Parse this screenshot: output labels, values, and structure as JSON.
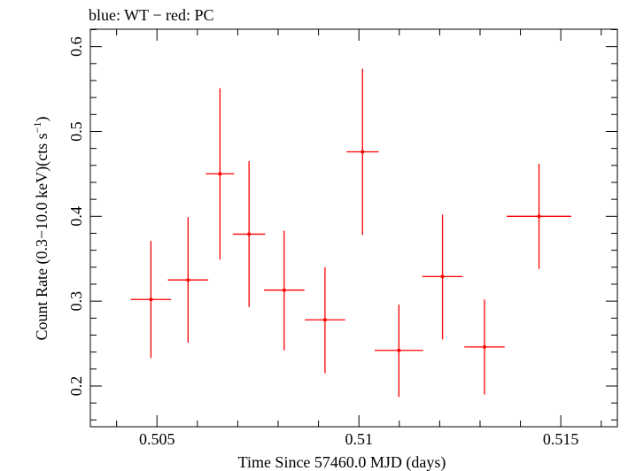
{
  "chart_data": {
    "type": "scatter",
    "title": "blue: WT − red: PC",
    "xlabel": "Time Since 57460.0 MJD (days)",
    "ylabel_main": "Count Rate (0.3−10.0 keV)(cts s",
    "ylabel_sup": "−1",
    "ylabel_end": ")",
    "xlim": [
      0.50335,
      0.5164
    ],
    "ylim": [
      0.152,
      0.6205
    ],
    "xticks_major": [
      0.505,
      0.51,
      0.515
    ],
    "xtick_labels": [
      "0.505",
      "0.51",
      "0.515"
    ],
    "yticks_major": [
      0.2,
      0.3,
      0.4,
      0.5,
      0.6
    ],
    "ytick_labels": [
      "0.2",
      "0.3",
      "0.4",
      "0.5",
      "0.6"
    ],
    "series": [
      {
        "color": "#ff0000",
        "points": [
          {
            "x": 0.50485,
            "xerr": 0.0005,
            "y": 0.302,
            "ylo": 0.233,
            "yhi": 0.371
          },
          {
            "x": 0.50577,
            "xerr": 0.0005,
            "y": 0.325,
            "ylo": 0.251,
            "yhi": 0.399
          },
          {
            "x": 0.50656,
            "xerr": 0.00035,
            "y": 0.45,
            "ylo": 0.349,
            "yhi": 0.551
          },
          {
            "x": 0.50728,
            "xerr": 0.0004,
            "y": 0.379,
            "ylo": 0.293,
            "yhi": 0.465
          },
          {
            "x": 0.50815,
            "xerr": 0.0005,
            "y": 0.313,
            "ylo": 0.242,
            "yhi": 0.383
          },
          {
            "x": 0.50916,
            "xerr": 0.0005,
            "y": 0.278,
            "ylo": 0.215,
            "yhi": 0.34
          },
          {
            "x": 0.51009,
            "xerr": 0.0004,
            "y": 0.476,
            "ylo": 0.378,
            "yhi": 0.574
          },
          {
            "x": 0.51099,
            "xerr": 0.0006,
            "y": 0.242,
            "ylo": 0.187,
            "yhi": 0.296
          },
          {
            "x": 0.51207,
            "xerr": 0.0005,
            "y": 0.329,
            "ylo": 0.255,
            "yhi": 0.402
          },
          {
            "x": 0.51311,
            "xerr": 0.0005,
            "y": 0.246,
            "ylo": 0.19,
            "yhi": 0.302
          },
          {
            "x": 0.51446,
            "xerr": 0.0008,
            "y": 0.4,
            "ylo": 0.338,
            "yhi": 0.462
          }
        ]
      }
    ]
  }
}
